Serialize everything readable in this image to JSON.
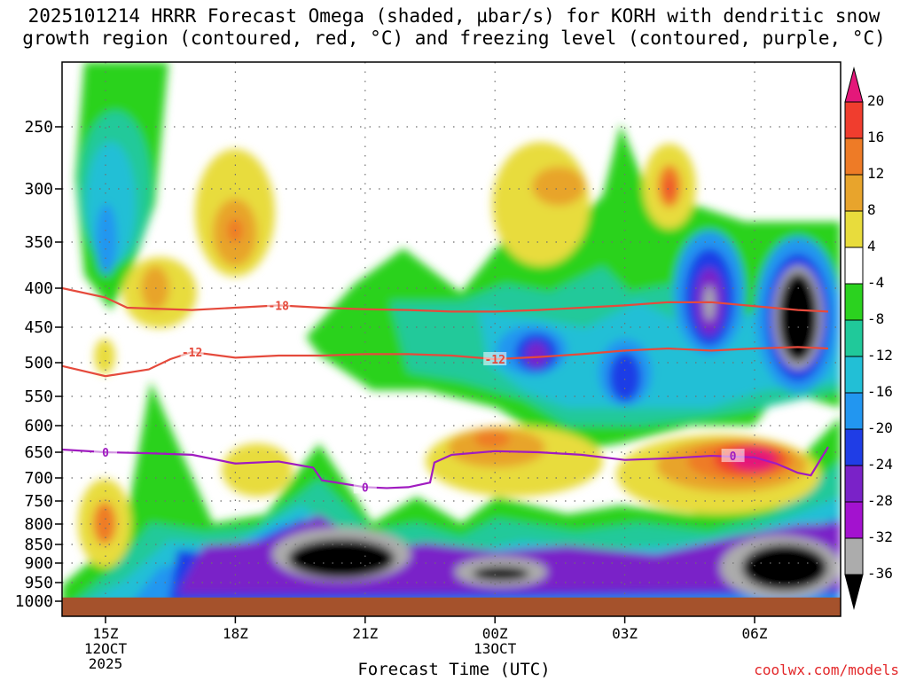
{
  "title_line1": "2025101214 HRRR Forecast Omega (shaded, µbar/s) for KORH with dendritic snow",
  "title_line2": "growth region (contoured, red, °C) and freezing level (contoured, purple, °C)",
  "credit": "coolwx.com/models",
  "chart_data": {
    "type": "heatmap",
    "title": "2025101214 HRRR Forecast Omega (shaded, µbar/s) for KORH with dendritic snow growth region (contoured, red, °C) and freezing level (contoured, purple, °C)",
    "xlabel": "Forecast Time (UTC)",
    "ylabel": "",
    "x_ticks": [
      {
        "hour": 1,
        "label": "15Z",
        "sub": [
          "12OCT",
          "2025"
        ]
      },
      {
        "hour": 4,
        "label": "18Z",
        "sub": []
      },
      {
        "hour": 7,
        "label": "21Z",
        "sub": []
      },
      {
        "hour": 10,
        "label": "00Z",
        "sub": [
          "13OCT"
        ]
      },
      {
        "hour": 13,
        "label": "03Z",
        "sub": []
      },
      {
        "hour": 16,
        "label": "06Z",
        "sub": []
      }
    ],
    "xlim": [
      0,
      18
    ],
    "y_ticks": [
      250,
      300,
      350,
      400,
      450,
      500,
      550,
      600,
      650,
      700,
      750,
      800,
      850,
      900,
      950,
      1000
    ],
    "ylim_hPa": [
      200,
      1000
    ],
    "colorbar": {
      "unit": "µbar/s",
      "labels": [
        "20",
        "16",
        "12",
        "8",
        "4",
        "-4",
        "-8",
        "-12",
        "-16",
        "-20",
        "-24",
        "-28",
        "-32",
        "-36"
      ],
      "bins": [
        {
          "range": ">20",
          "color": "#e4187a"
        },
        {
          "range": "16–20",
          "color": "#f03d2e"
        },
        {
          "range": "12–16",
          "color": "#ee7b26"
        },
        {
          "range": "8–12",
          "color": "#e8a42c"
        },
        {
          "range": "4–8",
          "color": "#e8dc3c"
        },
        {
          "range": "-4–4",
          "color": "#ffffff"
        },
        {
          "range": "-8–-4",
          "color": "#2bd21f"
        },
        {
          "range": "-12–-8",
          "color": "#20c99a"
        },
        {
          "range": "-16–-12",
          "color": "#22bfd6"
        },
        {
          "range": "-20–-16",
          "color": "#2296f0"
        },
        {
          "range": "-24–-20",
          "color": "#1f3de6"
        },
        {
          "range": "-28–-24",
          "color": "#7a22c8"
        },
        {
          "range": "-32–-28",
          "color": "#a312cf"
        },
        {
          "range": "-36–-32",
          "color": "#acacac"
        },
        {
          "range": "<-36",
          "color": "#000000"
        }
      ]
    },
    "contours": [
      {
        "label": "-18",
        "color": "#e54a3c",
        "points": [
          [
            0,
            400
          ],
          [
            1,
            412
          ],
          [
            1.5,
            425
          ],
          [
            3,
            428
          ],
          [
            4,
            425
          ],
          [
            5,
            422
          ],
          [
            6,
            425
          ],
          [
            7,
            427
          ],
          [
            8,
            428
          ],
          [
            9,
            430
          ],
          [
            10,
            430
          ],
          [
            11,
            428
          ],
          [
            12,
            425
          ],
          [
            13,
            422
          ],
          [
            14,
            418
          ],
          [
            15,
            418
          ],
          [
            16,
            423
          ],
          [
            17,
            428
          ],
          [
            17.7,
            430
          ]
        ]
      },
      {
        "label": "-12",
        "color": "#e54a3c",
        "points": [
          [
            0,
            505
          ],
          [
            1,
            520
          ],
          [
            2,
            510
          ],
          [
            2.5,
            495
          ],
          [
            3,
            485
          ],
          [
            4,
            493
          ],
          [
            5,
            490
          ],
          [
            6,
            490
          ],
          [
            7,
            488
          ],
          [
            8,
            488
          ],
          [
            9,
            490
          ],
          [
            10,
            495
          ],
          [
            11,
            492
          ],
          [
            12,
            488
          ],
          [
            13,
            483
          ],
          [
            14,
            480
          ],
          [
            15,
            483
          ],
          [
            16,
            480
          ],
          [
            17,
            478
          ],
          [
            17.7,
            480
          ]
        ]
      },
      {
        "label": "0",
        "color": "#a01bc0",
        "points": [
          [
            0,
            645
          ],
          [
            1,
            650
          ],
          [
            2,
            652
          ],
          [
            3,
            655
          ],
          [
            4,
            672
          ],
          [
            5,
            668
          ],
          [
            5.8,
            680
          ],
          [
            6,
            705
          ],
          [
            7,
            720
          ],
          [
            7.5,
            722
          ],
          [
            8,
            720
          ],
          [
            8.5,
            710
          ],
          [
            8.6,
            670
          ],
          [
            9,
            655
          ],
          [
            10,
            648
          ],
          [
            11,
            650
          ],
          [
            12,
            655
          ],
          [
            13,
            665
          ],
          [
            14,
            662
          ],
          [
            15,
            657
          ],
          [
            16,
            660
          ],
          [
            16.5,
            672
          ],
          [
            17,
            690
          ],
          [
            17.3,
            695
          ],
          [
            17.7,
            640
          ]
        ]
      }
    ],
    "ground_level_hPa": 990
  }
}
